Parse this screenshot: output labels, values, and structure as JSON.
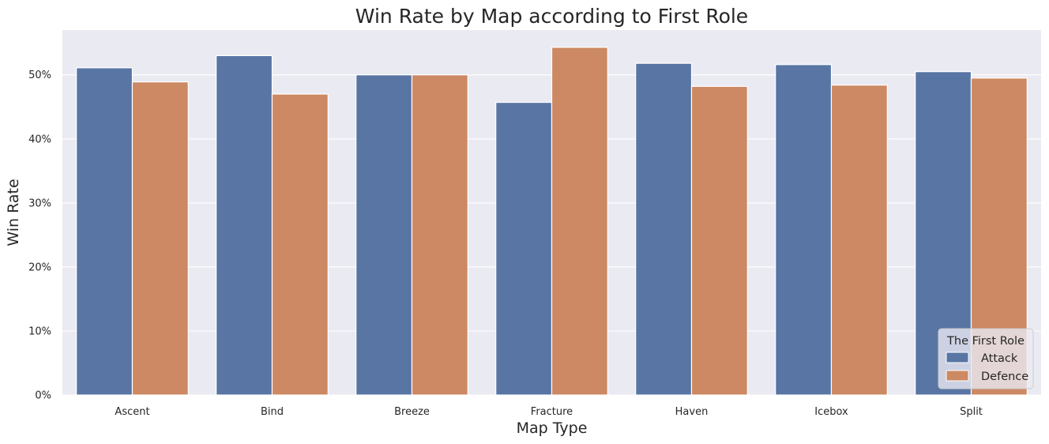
{
  "chart_data": {
    "type": "bar",
    "title": "Win Rate by Map according to First Role",
    "xlabel": "Map Type",
    "ylabel": "Win Rate",
    "categories": [
      "Ascent",
      "Bind",
      "Breeze",
      "Fracture",
      "Haven",
      "Icebox",
      "Split"
    ],
    "series": [
      {
        "name": "Attack",
        "color": "#5875a4",
        "values": [
          51.1,
          53.0,
          50.0,
          45.7,
          51.8,
          51.6,
          50.5
        ]
      },
      {
        "name": "Defence",
        "color": "#cc8963",
        "values": [
          48.9,
          47.0,
          50.0,
          54.3,
          48.2,
          48.4,
          49.5
        ]
      }
    ],
    "ylim": [
      0,
      57
    ],
    "yticks": [
      0,
      10,
      20,
      30,
      40,
      50
    ],
    "ytick_labels": [
      "0%",
      "10%",
      "20%",
      "30%",
      "40%",
      "50%"
    ],
    "grid": true,
    "legend": {
      "title": "The First Role",
      "position": "lower-right"
    },
    "background_color": "#eaeaf2",
    "grid_color": "#ffffff"
  }
}
